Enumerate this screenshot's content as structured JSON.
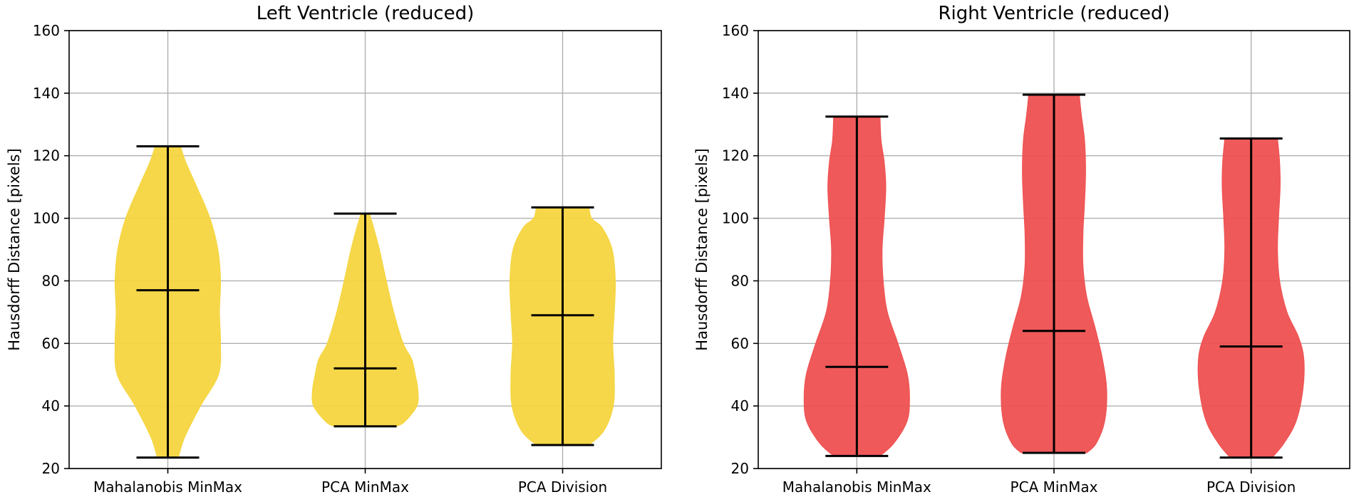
{
  "chart_data": [
    {
      "type": "violin",
      "title": "Left Ventricle (reduced)",
      "ylabel": "Hausdorff Distance [pixels]",
      "xlabel": "",
      "ylim": [
        20,
        160
      ],
      "yticks": [
        20,
        40,
        60,
        80,
        100,
        120,
        140,
        160
      ],
      "grid": true,
      "color": "#f5d53f",
      "categories": [
        "Mahalanobis MinMax",
        "PCA MinMax",
        "PCA Division"
      ],
      "series": [
        {
          "name": "Mahalanobis MinMax",
          "min": 23.5,
          "median": 77,
          "max": 123,
          "density_profile": [
            [
              23.5,
              0.2
            ],
            [
              30,
              0.32
            ],
            [
              40,
              0.62
            ],
            [
              50,
              0.96
            ],
            [
              60,
              1.0
            ],
            [
              70,
              0.98
            ],
            [
              80,
              1.0
            ],
            [
              90,
              0.95
            ],
            [
              100,
              0.8
            ],
            [
              110,
              0.55
            ],
            [
              118,
              0.34
            ],
            [
              123,
              0.24
            ]
          ]
        },
        {
          "name": "PCA MinMax",
          "min": 33.5,
          "median": 52,
          "max": 101.5,
          "density_profile": [
            [
              33.5,
              0.6
            ],
            [
              35,
              0.75
            ],
            [
              40,
              0.98
            ],
            [
              45,
              1.0
            ],
            [
              50,
              0.95
            ],
            [
              55,
              0.88
            ],
            [
              60,
              0.72
            ],
            [
              70,
              0.54
            ],
            [
              80,
              0.4
            ],
            [
              90,
              0.27
            ],
            [
              97,
              0.16
            ],
            [
              101.5,
              0.08
            ]
          ]
        },
        {
          "name": "PCA Division",
          "min": 27.5,
          "median": 69,
          "max": 103.5,
          "density_profile": [
            [
              27.5,
              0.5
            ],
            [
              32,
              0.78
            ],
            [
              40,
              0.96
            ],
            [
              50,
              0.98
            ],
            [
              60,
              0.95
            ],
            [
              70,
              0.98
            ],
            [
              80,
              1.0
            ],
            [
              90,
              0.94
            ],
            [
              97,
              0.75
            ],
            [
              100,
              0.55
            ],
            [
              103.5,
              0.5
            ]
          ]
        }
      ]
    },
    {
      "type": "violin",
      "title": "Right Ventricle (reduced)",
      "ylabel": "Hausdorff Distance [pixels]",
      "xlabel": "",
      "ylim": [
        20,
        160
      ],
      "yticks": [
        20,
        40,
        60,
        80,
        100,
        120,
        140,
        160
      ],
      "grid": true,
      "color": "#ef5050",
      "categories": [
        "Mahalanobis MinMax",
        "PCA MinMax",
        "PCA Division"
      ],
      "series": [
        {
          "name": "Mahalanobis MinMax",
          "min": 24,
          "median": 52.5,
          "max": 132.5,
          "density_profile": [
            [
              24,
              0.44
            ],
            [
              28,
              0.7
            ],
            [
              35,
              0.95
            ],
            [
              42,
              1.0
            ],
            [
              50,
              0.96
            ],
            [
              60,
              0.78
            ],
            [
              70,
              0.58
            ],
            [
              80,
              0.5
            ],
            [
              90,
              0.48
            ],
            [
              100,
              0.52
            ],
            [
              110,
              0.55
            ],
            [
              118,
              0.52
            ],
            [
              125,
              0.46
            ],
            [
              132.5,
              0.44
            ]
          ]
        },
        {
          "name": "PCA MinMax",
          "min": 25,
          "median": 64,
          "max": 139.5,
          "density_profile": [
            [
              25,
              0.62
            ],
            [
              28,
              0.8
            ],
            [
              35,
              0.96
            ],
            [
              45,
              1.0
            ],
            [
              55,
              0.92
            ],
            [
              65,
              0.78
            ],
            [
              75,
              0.62
            ],
            [
              85,
              0.55
            ],
            [
              95,
              0.55
            ],
            [
              105,
              0.58
            ],
            [
              115,
              0.6
            ],
            [
              125,
              0.58
            ],
            [
              133,
              0.52
            ],
            [
              139.5,
              0.48
            ]
          ]
        },
        {
          "name": "PCA Division",
          "min": 23.5,
          "median": 59,
          "max": 125.5,
          "density_profile": [
            [
              23.5,
              0.4
            ],
            [
              28,
              0.62
            ],
            [
              35,
              0.85
            ],
            [
              45,
              0.98
            ],
            [
              55,
              1.0
            ],
            [
              62,
              0.9
            ],
            [
              70,
              0.68
            ],
            [
              80,
              0.54
            ],
            [
              90,
              0.5
            ],
            [
              100,
              0.52
            ],
            [
              110,
              0.55
            ],
            [
              118,
              0.54
            ],
            [
              125.5,
              0.5
            ]
          ]
        }
      ]
    }
  ]
}
